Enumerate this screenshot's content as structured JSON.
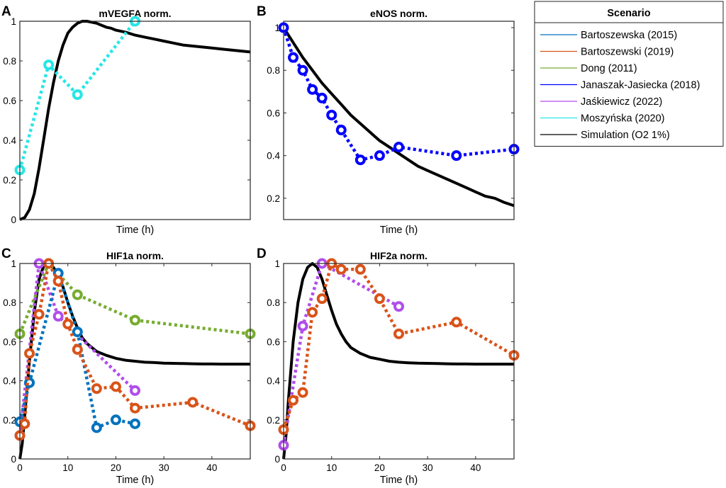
{
  "chart_data": [
    {
      "panel": "A",
      "type": "line",
      "title": "mVEGFA norm.",
      "xlabel": "Time (h)",
      "ylabel": "",
      "xlim": [
        0,
        48
      ],
      "ylim": [
        0,
        1
      ],
      "xticks": [],
      "xtick_labels": [],
      "yticks": [
        0,
        0.2,
        0.4,
        0.6,
        0.8,
        1
      ],
      "ytick_labels": [
        "0",
        "0.2",
        "0.4",
        "0.6",
        "0.8",
        "1"
      ],
      "series": [
        {
          "name": "Moszyńska (2020)",
          "x": [
            0,
            6,
            12,
            24
          ],
          "y": [
            0.25,
            0.78,
            0.63,
            1.0
          ]
        }
      ],
      "simulation": {
        "name": "Simulation (O2 1%)",
        "x": [
          0,
          1,
          2,
          3,
          4,
          5,
          6,
          7,
          8,
          9,
          10,
          11,
          12,
          13,
          14,
          15,
          16,
          17,
          18,
          19,
          20,
          22,
          24,
          26,
          28,
          30,
          32,
          34,
          36,
          38,
          40,
          42,
          44,
          46,
          48
        ],
        "y": [
          0,
          0.01,
          0.05,
          0.13,
          0.26,
          0.41,
          0.56,
          0.69,
          0.8,
          0.88,
          0.94,
          0.97,
          0.99,
          1.0,
          1.0,
          0.995,
          0.99,
          0.98,
          0.97,
          0.965,
          0.955,
          0.945,
          0.93,
          0.92,
          0.91,
          0.9,
          0.89,
          0.88,
          0.875,
          0.87,
          0.865,
          0.86,
          0.855,
          0.85,
          0.845
        ]
      }
    },
    {
      "panel": "B",
      "type": "line",
      "title": "eNOS norm.",
      "xlabel": "Time (h)",
      "ylabel": "",
      "xlim": [
        0,
        48
      ],
      "ylim": [
        0.1,
        1.03
      ],
      "xticks": [],
      "xtick_labels": [],
      "yticks": [
        0.2,
        0.4,
        0.6,
        0.8,
        1
      ],
      "ytick_labels": [
        "0.2",
        "0.4",
        "0.6",
        "0.8",
        "1"
      ],
      "series": [
        {
          "name": "Janaszak-Jasiecka (2018)",
          "x": [
            0,
            2,
            4,
            6,
            8,
            10,
            12,
            16,
            20,
            24,
            36,
            48
          ],
          "y": [
            1.0,
            0.86,
            0.8,
            0.71,
            0.67,
            0.59,
            0.52,
            0.38,
            0.4,
            0.44,
            0.4,
            0.43
          ]
        }
      ],
      "simulation": {
        "name": "Simulation (O2 1%)",
        "x": [
          0,
          2,
          4,
          6,
          8,
          10,
          12,
          14,
          16,
          18,
          20,
          22,
          24,
          26,
          28,
          30,
          32,
          34,
          36,
          38,
          40,
          42,
          44,
          46,
          48
        ],
        "y": [
          1.0,
          0.93,
          0.86,
          0.8,
          0.74,
          0.69,
          0.64,
          0.59,
          0.55,
          0.51,
          0.47,
          0.44,
          0.41,
          0.38,
          0.35,
          0.33,
          0.31,
          0.29,
          0.27,
          0.25,
          0.23,
          0.21,
          0.2,
          0.18,
          0.165
        ]
      }
    },
    {
      "panel": "C",
      "type": "line",
      "title": "HIF1a norm.",
      "xlabel": "Time (h)",
      "ylabel": "",
      "xlim": [
        0,
        48
      ],
      "ylim": [
        0,
        1
      ],
      "xticks": [
        0,
        10,
        20,
        30,
        40
      ],
      "xtick_labels": [
        "0",
        "10",
        "20",
        "30",
        "40"
      ],
      "yticks": [
        0,
        0.2,
        0.4,
        0.6,
        0.8,
        1
      ],
      "ytick_labels": [
        "0",
        "0.2",
        "0.4",
        "0.6",
        "0.8",
        "1"
      ],
      "series": [
        {
          "name": "Dong (2011)",
          "x": [
            0,
            6,
            12,
            24,
            48
          ],
          "y": [
            0.64,
            1.0,
            0.84,
            0.71,
            0.64
          ]
        },
        {
          "name": "Jaśkiewicz (2022)",
          "x": [
            0,
            4,
            8,
            24
          ],
          "y": [
            0.12,
            1.0,
            0.73,
            0.35
          ]
        },
        {
          "name": "Bartoszewska (2015)",
          "x": [
            0,
            2,
            8,
            12,
            16,
            20,
            24
          ],
          "y": [
            0.19,
            0.39,
            0.95,
            0.65,
            0.16,
            0.2,
            0.18
          ]
        },
        {
          "name": "Bartoszewski (2019)",
          "x": [
            0,
            1,
            2,
            4,
            6,
            8,
            10,
            12,
            16,
            20,
            24,
            36,
            48
          ],
          "y": [
            0.12,
            0.18,
            0.54,
            0.74,
            1.0,
            0.91,
            0.69,
            0.56,
            0.36,
            0.37,
            0.26,
            0.29,
            0.17
          ]
        }
      ],
      "simulation": {
        "name": "Simulation (O2 1%)",
        "x": [
          0,
          0.5,
          1,
          2,
          3,
          4,
          5,
          6,
          7,
          8,
          9,
          10,
          11,
          12,
          13,
          14,
          16,
          18,
          20,
          22,
          24,
          26,
          28,
          30,
          32,
          34,
          36,
          38,
          40,
          42,
          44,
          46,
          48
        ],
        "y": [
          0,
          0.08,
          0.22,
          0.5,
          0.75,
          0.92,
          0.99,
          1.0,
          0.98,
          0.94,
          0.88,
          0.8,
          0.73,
          0.67,
          0.62,
          0.59,
          0.55,
          0.53,
          0.515,
          0.505,
          0.5,
          0.495,
          0.493,
          0.49,
          0.489,
          0.488,
          0.487,
          0.486,
          0.486,
          0.485,
          0.485,
          0.485,
          0.485
        ]
      }
    },
    {
      "panel": "D",
      "type": "line",
      "title": "HIF2a norm.",
      "xlabel": "Time (h)",
      "ylabel": "",
      "xlim": [
        0,
        48
      ],
      "ylim": [
        0,
        1
      ],
      "xticks": [
        0,
        10,
        20,
        30,
        40
      ],
      "xtick_labels": [
        "0",
        "10",
        "20",
        "30",
        "40"
      ],
      "yticks": [
        0,
        0.2,
        0.4,
        0.6,
        0.8,
        1
      ],
      "ytick_labels": [
        "0",
        "0.2",
        "0.4",
        "0.6",
        "0.8",
        "1"
      ],
      "series": [
        {
          "name": "Jaśkiewicz (2022)",
          "x": [
            0,
            4,
            8,
            24
          ],
          "y": [
            0.07,
            0.68,
            1.0,
            0.78
          ]
        },
        {
          "name": "Bartoszewski (2019)",
          "x": [
            0,
            2,
            4,
            6,
            8,
            10,
            12,
            16,
            20,
            24,
            36,
            48
          ],
          "y": [
            0.15,
            0.3,
            0.34,
            0.75,
            0.82,
            1.0,
            0.97,
            0.97,
            0.82,
            0.64,
            0.7,
            0.53
          ]
        }
      ],
      "simulation": {
        "name": "Simulation (O2 1%)",
        "x": [
          0,
          0.5,
          1,
          2,
          3,
          4,
          5,
          6,
          7,
          8,
          9,
          10,
          11,
          12,
          13,
          14,
          16,
          18,
          20,
          22,
          24,
          26,
          28,
          30,
          32,
          34,
          36,
          38,
          40,
          42,
          44,
          46,
          48
        ],
        "y": [
          0,
          0.12,
          0.3,
          0.6,
          0.8,
          0.92,
          0.98,
          1.0,
          0.98,
          0.92,
          0.84,
          0.76,
          0.69,
          0.64,
          0.6,
          0.57,
          0.54,
          0.52,
          0.51,
          0.5,
          0.495,
          0.492,
          0.49,
          0.489,
          0.488,
          0.487,
          0.486,
          0.486,
          0.485,
          0.485,
          0.485,
          0.485,
          0.485
        ]
      }
    }
  ],
  "legend": {
    "title": "Scenario",
    "entries": [
      {
        "label": "Bartoszewska (2015)",
        "color": "#0072BD"
      },
      {
        "label": "Bartoszewski (2019)",
        "color": "#D95319"
      },
      {
        "label": "Dong (2011)",
        "color": "#77AC30"
      },
      {
        "label": "Janaszak-Jasiecka (2018)",
        "color": "#0000FF"
      },
      {
        "label": "Jaśkiewicz (2022)",
        "color": "#B04EEB"
      },
      {
        "label": "Moszyńska (2020)",
        "color": "#26E6E6"
      },
      {
        "label": "Simulation (O2 1%)",
        "color": "#000000"
      }
    ]
  }
}
